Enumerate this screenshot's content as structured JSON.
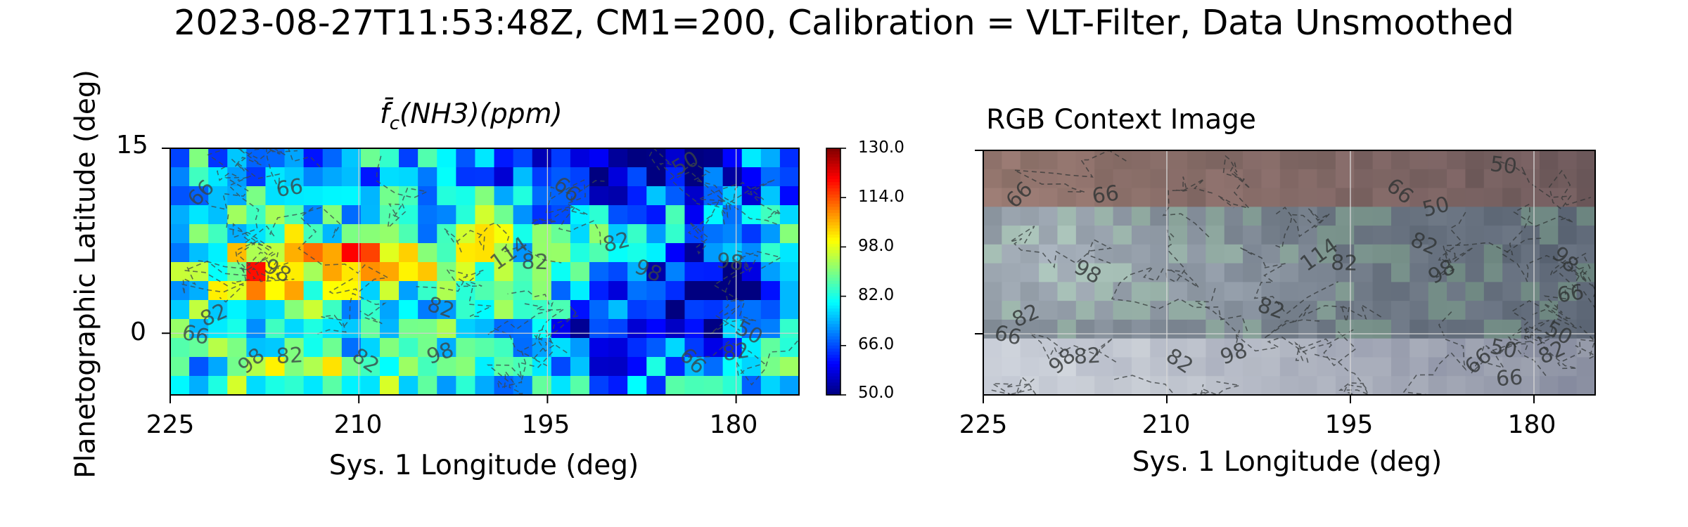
{
  "title": "2023-08-27T11:53:48Z, CM1=200, Calibration = VLT-Filter, Data Unsmoothed",
  "chart_data": [
    {
      "type": "heatmap",
      "title": "f̄c(NH3)(ppm)",
      "title_parts": {
        "fbar": "f̄",
        "sub": "c",
        "rest": "(NH3)(ppm)"
      },
      "xlabel": "Sys. 1 Longitude (deg)",
      "ylabel": "Planetographic Latitude (deg)",
      "xlim": [
        225,
        175
      ],
      "ylim": [
        -5,
        15
      ],
      "xticks": [
        "225",
        "210",
        "195",
        "180"
      ],
      "xtick_values": [
        225,
        210,
        195,
        180
      ],
      "yticks": [
        "15",
        "0"
      ],
      "ytick_values": [
        15,
        0
      ],
      "colormap": "jet",
      "colorbar": {
        "min": 50.0,
        "max": 130.0,
        "ticks": [
          "130.0",
          "114.0",
          "98.0",
          "82.0",
          "66.0",
          "50.0"
        ],
        "tick_values": [
          130,
          114,
          98,
          82,
          66,
          50
        ]
      },
      "grid": "on",
      "contour_levels": [
        50,
        66,
        82,
        98,
        114
      ],
      "contour_labels": [
        {
          "text": "66",
          "lon": 222.5,
          "lat": 11.3
        },
        {
          "text": "66",
          "lon": 215.5,
          "lat": 11.7
        },
        {
          "text": "98",
          "lon": 216.5,
          "lat": 5.0
        },
        {
          "text": "82",
          "lon": 221.5,
          "lat": 1.4
        },
        {
          "text": "66",
          "lon": 223.0,
          "lat": -0.2
        },
        {
          "text": "98",
          "lon": 218.5,
          "lat": -2.3
        },
        {
          "text": "82",
          "lon": 215.5,
          "lat": -1.9
        },
        {
          "text": "82",
          "lon": 209.5,
          "lat": -2.3
        },
        {
          "text": "98",
          "lon": 203.5,
          "lat": -1.7
        },
        {
          "text": "82",
          "lon": 203.5,
          "lat": 2.0
        },
        {
          "text": "114",
          "lon": 198.0,
          "lat": 6.4
        },
        {
          "text": "82",
          "lon": 196.0,
          "lat": 5.7
        },
        {
          "text": "66",
          "lon": 193.5,
          "lat": 11.6
        },
        {
          "text": "82",
          "lon": 189.5,
          "lat": 7.3
        },
        {
          "text": "98",
          "lon": 187.0,
          "lat": 5.0
        },
        {
          "text": "50",
          "lon": 184.0,
          "lat": 13.7
        },
        {
          "text": "98",
          "lon": 180.5,
          "lat": 5.7
        },
        {
          "text": "66",
          "lon": 183.5,
          "lat": -2.3
        },
        {
          "text": "82",
          "lon": 180.0,
          "lat": -1.6
        },
        {
          "text": "50",
          "lon": 179.0,
          "lat": 0.0
        }
      ],
      "grid_cells": {
        "nx": 33,
        "ny": 13,
        "lon_start": 225,
        "lon_end": 175,
        "lat_start": 15,
        "lat_end": -5
      }
    },
    {
      "type": "image",
      "title": "RGB Context Image",
      "xlabel": "Sys. 1 Longitude (deg)",
      "xlim": [
        225,
        175
      ],
      "ylim": [
        -5,
        15
      ],
      "xticks": [
        "225",
        "210",
        "195",
        "180"
      ],
      "xtick_values": [
        225,
        210,
        195,
        180
      ],
      "grid": "on",
      "contour_labels": [
        {
          "text": "66",
          "lon": 222.0,
          "lat": 11.3
        },
        {
          "text": "66",
          "lon": 215.0,
          "lat": 11.3
        },
        {
          "text": "98",
          "lon": 216.5,
          "lat": 5.0
        },
        {
          "text": "82",
          "lon": 221.5,
          "lat": 1.4
        },
        {
          "text": "66",
          "lon": 223.0,
          "lat": -0.2
        },
        {
          "text": "98",
          "lon": 218.5,
          "lat": -2.3
        },
        {
          "text": "82",
          "lon": 216.5,
          "lat": -1.9
        },
        {
          "text": "82",
          "lon": 209.0,
          "lat": -2.3
        },
        {
          "text": "98",
          "lon": 204.5,
          "lat": -1.7
        },
        {
          "text": "82",
          "lon": 201.5,
          "lat": 2.0
        },
        {
          "text": "114",
          "lon": 197.5,
          "lat": 6.4
        },
        {
          "text": "82",
          "lon": 195.5,
          "lat": 5.7
        },
        {
          "text": "66",
          "lon": 191.0,
          "lat": 11.6
        },
        {
          "text": "50",
          "lon": 188.0,
          "lat": 10.3
        },
        {
          "text": "82",
          "lon": 189.0,
          "lat": 7.3
        },
        {
          "text": "98",
          "lon": 187.5,
          "lat": 5.0
        },
        {
          "text": "50",
          "lon": 182.5,
          "lat": 13.7
        },
        {
          "text": "98",
          "lon": 177.5,
          "lat": 6.0
        },
        {
          "text": "66",
          "lon": 177.0,
          "lat": 3.2
        },
        {
          "text": "50",
          "lon": 178.0,
          "lat": 0.0
        },
        {
          "text": "82",
          "lon": 178.5,
          "lat": -1.6
        },
        {
          "text": "50",
          "lon": 182.5,
          "lat": -1.3
        },
        {
          "text": "66",
          "lon": 184.5,
          "lat": -2.3
        },
        {
          "text": "66",
          "lon": 182.0,
          "lat": -3.7
        }
      ],
      "image_colors": {
        "top": "#8c6e68",
        "mid": "#8b929b",
        "bottom": "#c8ccd8",
        "right": "#5b6066"
      }
    }
  ]
}
